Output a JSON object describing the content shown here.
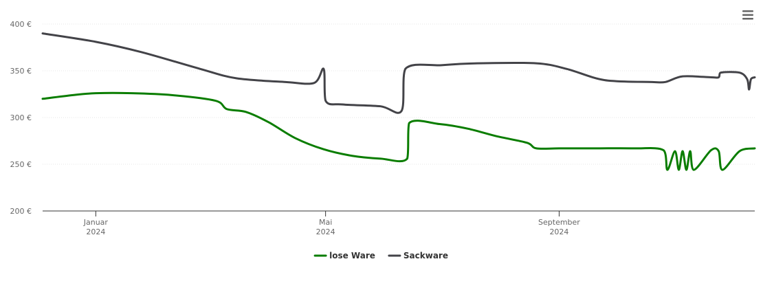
{
  "chart_data": {
    "type": "line",
    "title": "",
    "xlabel": "",
    "ylabel": "",
    "ylim": [
      200,
      400
    ],
    "y_ticks": [
      {
        "value": 200,
        "label": "200 €"
      },
      {
        "value": 250,
        "label": "250 €"
      },
      {
        "value": 300,
        "label": "300 €"
      },
      {
        "value": 350,
        "label": "350 €"
      },
      {
        "value": 400,
        "label": "400 €"
      }
    ],
    "x_range": [
      "2023-12-04",
      "2024-12-13"
    ],
    "x_ticks": [
      {
        "date": "2024-01-01",
        "label": "Januar",
        "sublabel": "2024"
      },
      {
        "date": "2024-05-01",
        "label": "Mai",
        "sublabel": "2024"
      },
      {
        "date": "2024-09-01",
        "label": "September",
        "sublabel": "2024"
      }
    ],
    "grid": true,
    "legend_position": "bottom-center",
    "series": [
      {
        "name": "lose Ware",
        "color": "#0a7d00",
        "points": [
          [
            "2023-12-04",
            320
          ],
          [
            "2023-12-20",
            324
          ],
          [
            "2024-01-01",
            326
          ],
          [
            "2024-01-20",
            326
          ],
          [
            "2024-02-10",
            324
          ],
          [
            "2024-03-04",
            318
          ],
          [
            "2024-03-10",
            309
          ],
          [
            "2024-03-20",
            306
          ],
          [
            "2024-04-01",
            295
          ],
          [
            "2024-04-15",
            278
          ],
          [
            "2024-04-30",
            266
          ],
          [
            "2024-05-15",
            259
          ],
          [
            "2024-05-30",
            256
          ],
          [
            "2024-06-13",
            256
          ],
          [
            "2024-06-14",
            294
          ],
          [
            "2024-06-30",
            293
          ],
          [
            "2024-07-15",
            288
          ],
          [
            "2024-07-30",
            280
          ],
          [
            "2024-08-15",
            273
          ],
          [
            "2024-08-20",
            267
          ],
          [
            "2024-09-01",
            267
          ],
          [
            "2024-09-20",
            267
          ],
          [
            "2024-10-10",
            267
          ],
          [
            "2024-10-26",
            265
          ],
          [
            "2024-10-28",
            244
          ],
          [
            "2024-11-01",
            264
          ],
          [
            "2024-11-03",
            244
          ],
          [
            "2024-11-05",
            264
          ],
          [
            "2024-11-07",
            244
          ],
          [
            "2024-11-09",
            264
          ],
          [
            "2024-11-11",
            244
          ],
          [
            "2024-11-20",
            265
          ],
          [
            "2024-11-24",
            264
          ],
          [
            "2024-11-26",
            244
          ],
          [
            "2024-12-05",
            264
          ],
          [
            "2024-12-13",
            267
          ]
        ]
      },
      {
        "name": "Sackware",
        "color": "#434348",
        "points": [
          [
            "2023-12-04",
            390
          ],
          [
            "2024-01-01",
            381
          ],
          [
            "2024-01-25",
            370
          ],
          [
            "2024-02-25",
            352
          ],
          [
            "2024-03-15",
            342
          ],
          [
            "2024-04-10",
            338
          ],
          [
            "2024-04-25",
            337
          ],
          [
            "2024-04-30",
            352
          ],
          [
            "2024-05-01",
            318
          ],
          [
            "2024-05-10",
            314
          ],
          [
            "2024-05-30",
            312
          ],
          [
            "2024-06-10",
            307
          ],
          [
            "2024-06-12",
            352
          ],
          [
            "2024-07-01",
            356
          ],
          [
            "2024-07-20",
            358
          ],
          [
            "2024-08-20",
            358
          ],
          [
            "2024-09-05",
            352
          ],
          [
            "2024-09-25",
            340
          ],
          [
            "2024-10-20",
            338
          ],
          [
            "2024-10-27",
            338
          ],
          [
            "2024-11-05",
            344
          ],
          [
            "2024-11-20",
            343
          ],
          [
            "2024-11-24",
            343
          ],
          [
            "2024-11-25",
            348
          ],
          [
            "2024-12-05",
            348
          ],
          [
            "2024-12-09",
            341
          ],
          [
            "2024-12-10",
            330
          ],
          [
            "2024-12-11",
            341
          ],
          [
            "2024-12-13",
            343
          ]
        ]
      }
    ]
  }
}
